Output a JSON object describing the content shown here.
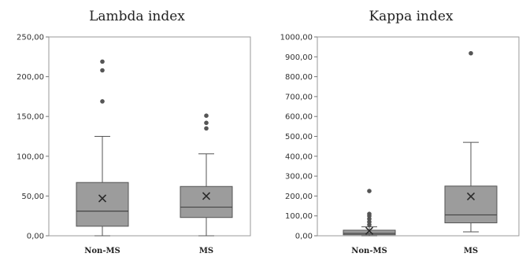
{
  "chart_data": [
    {
      "type": "box",
      "title": "Lambda index",
      "xlabel": "",
      "ylabel": "",
      "ylim": [
        0,
        250
      ],
      "y_ticks": [
        "0,00",
        "50,00",
        "100,00",
        "150,00",
        "200,00",
        "250,00"
      ],
      "y_tick_values": [
        0,
        50,
        100,
        150,
        200,
        250
      ],
      "grid": false,
      "categories": [
        "Non-MS",
        "MS"
      ],
      "boxes": [
        {
          "category": "Non-MS",
          "whisker_low": 0,
          "q1": 12,
          "median": 31,
          "q3": 67,
          "whisker_high": 125,
          "mean": 47,
          "outliers": [
            169,
            208,
            219
          ]
        },
        {
          "category": "MS",
          "whisker_low": 0,
          "q1": 23,
          "median": 36,
          "q3": 62,
          "whisker_high": 103,
          "mean": 50,
          "outliers": [
            135,
            142,
            151
          ]
        }
      ],
      "colors": {
        "box": "#9c9c9c",
        "line": "#555555"
      }
    },
    {
      "type": "box",
      "title": "Kappa index",
      "xlabel": "",
      "ylabel": "",
      "ylim": [
        0,
        1000
      ],
      "y_ticks": [
        "0,00",
        "100,00",
        "200,00",
        "300,00",
        "400,00",
        "500,00",
        "600,00",
        "700,00",
        "800,00",
        "900,00",
        "1000,00"
      ],
      "y_tick_values": [
        0,
        100,
        200,
        300,
        400,
        500,
        600,
        700,
        800,
        900,
        1000
      ],
      "grid": false,
      "categories": [
        "Non-MS",
        "MS"
      ],
      "boxes": [
        {
          "category": "Non-MS",
          "whisker_low": 0,
          "q1": 5,
          "median": 12,
          "q3": 28,
          "whisker_high": 45,
          "mean": 25,
          "outliers": [
            55,
            70,
            85,
            100,
            110,
            225
          ]
        },
        {
          "category": "MS",
          "whisker_low": 20,
          "q1": 65,
          "median": 105,
          "q3": 250,
          "whisker_high": 470,
          "mean": 198,
          "outliers": [
            918
          ]
        }
      ],
      "colors": {
        "box": "#9c9c9c",
        "line": "#555555"
      }
    }
  ]
}
